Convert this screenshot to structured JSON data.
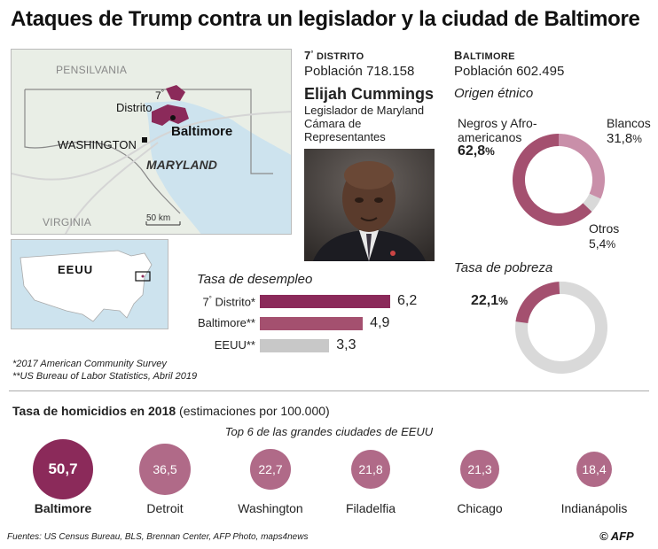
{
  "title": "Ataques de Trump contra un legislador y la ciudad de Baltimore",
  "map": {
    "state_labels": [
      "PENSILVANIA",
      "VIRGINIA",
      "MARYLAND"
    ],
    "city_labels": [
      "WASHINGTON",
      "Baltimore"
    ],
    "district_label_num": "7",
    "district_label_sup": "°",
    "district_label_word": "Distrito",
    "scale": "50 km",
    "inset_label": "EEUU"
  },
  "district": {
    "header_num": "7",
    "header_sup": "°",
    "header_word": "DISTRITO",
    "population_label": "Población",
    "population_value": "718.158",
    "name": "Elijah Cummings",
    "role_line1": "Legislador de Maryland",
    "role_line2": "Cámara de",
    "role_line3": "Representantes"
  },
  "baltimore": {
    "header_first": "B",
    "header_rest": "ALTIMORE",
    "population_label": "Población",
    "population_value": "602.495",
    "ethnic_title": "Origen étnico",
    "ethnic_labels": {
      "black_line1": "Negros y Afro-",
      "black_line2": "americanos",
      "white": "Blancos",
      "other": "Otros"
    },
    "poverty_title": "Tasa de pobreza"
  },
  "unemployment": {
    "title": "Tasa de desempleo",
    "row_labels": [
      "7",
      "Baltimore**",
      "EEUU**"
    ],
    "first_label_rest": " Distrito*",
    "first_label_sup": "°"
  },
  "footnotes": [
    "*2017 American Community Survey",
    "**US Bureau of Labor Statistics, Abril 2019"
  ],
  "homicides": {
    "title_bold": "Tasa de homicidios en 2018",
    "title_rest": " (estimaciones por 100.000)",
    "subtitle": "Top 6 de las grandes ciudades de EEUU"
  },
  "sources": "Fuentes: US Census Bureau, BLS, Brennan Center, AFP Photo, maps4news",
  "credit": "© AFP",
  "colors": {
    "accent": "#8b2a5a",
    "accent_mid": "#a4506f",
    "pink_light": "#c98fa9",
    "grey": "#bdbdbd",
    "grey_light": "#d9d9d9"
  },
  "chart_data": [
    {
      "type": "bar",
      "title": "Tasa de desempleo",
      "categories": [
        "7° Distrito*",
        "Baltimore**",
        "EEUU**"
      ],
      "values": [
        6.2,
        4.9,
        3.3
      ],
      "value_labels": [
        "6,2",
        "4,9",
        "3,3"
      ]
    },
    {
      "type": "pie",
      "title": "Origen étnico",
      "categories": [
        "Negros y Afro-americanos",
        "Blancos",
        "Otros"
      ],
      "values": [
        62.8,
        31.8,
        5.4
      ],
      "value_labels": [
        "62,8",
        "31,8",
        "5,4"
      ],
      "unit": "%"
    },
    {
      "type": "pie",
      "title": "Tasa de pobreza",
      "categories": [
        "Pobreza"
      ],
      "values": [
        22.1
      ],
      "value_labels": [
        "22,1"
      ],
      "unit": "%"
    },
    {
      "type": "bar",
      "title": "Tasa de homicidios en 2018 (estimaciones por 100.000)",
      "subtitle": "Top 6 de las grandes ciudades de EEUU",
      "categories": [
        "Baltimore",
        "Detroit",
        "Washington",
        "Filadelfia",
        "Chicago",
        "Indianápolis"
      ],
      "values": [
        50.7,
        36.5,
        22.7,
        21.8,
        21.3,
        18.4
      ],
      "value_labels": [
        "50,7",
        "36,5",
        "22,7",
        "21,8",
        "21,3",
        "18,4"
      ]
    }
  ]
}
